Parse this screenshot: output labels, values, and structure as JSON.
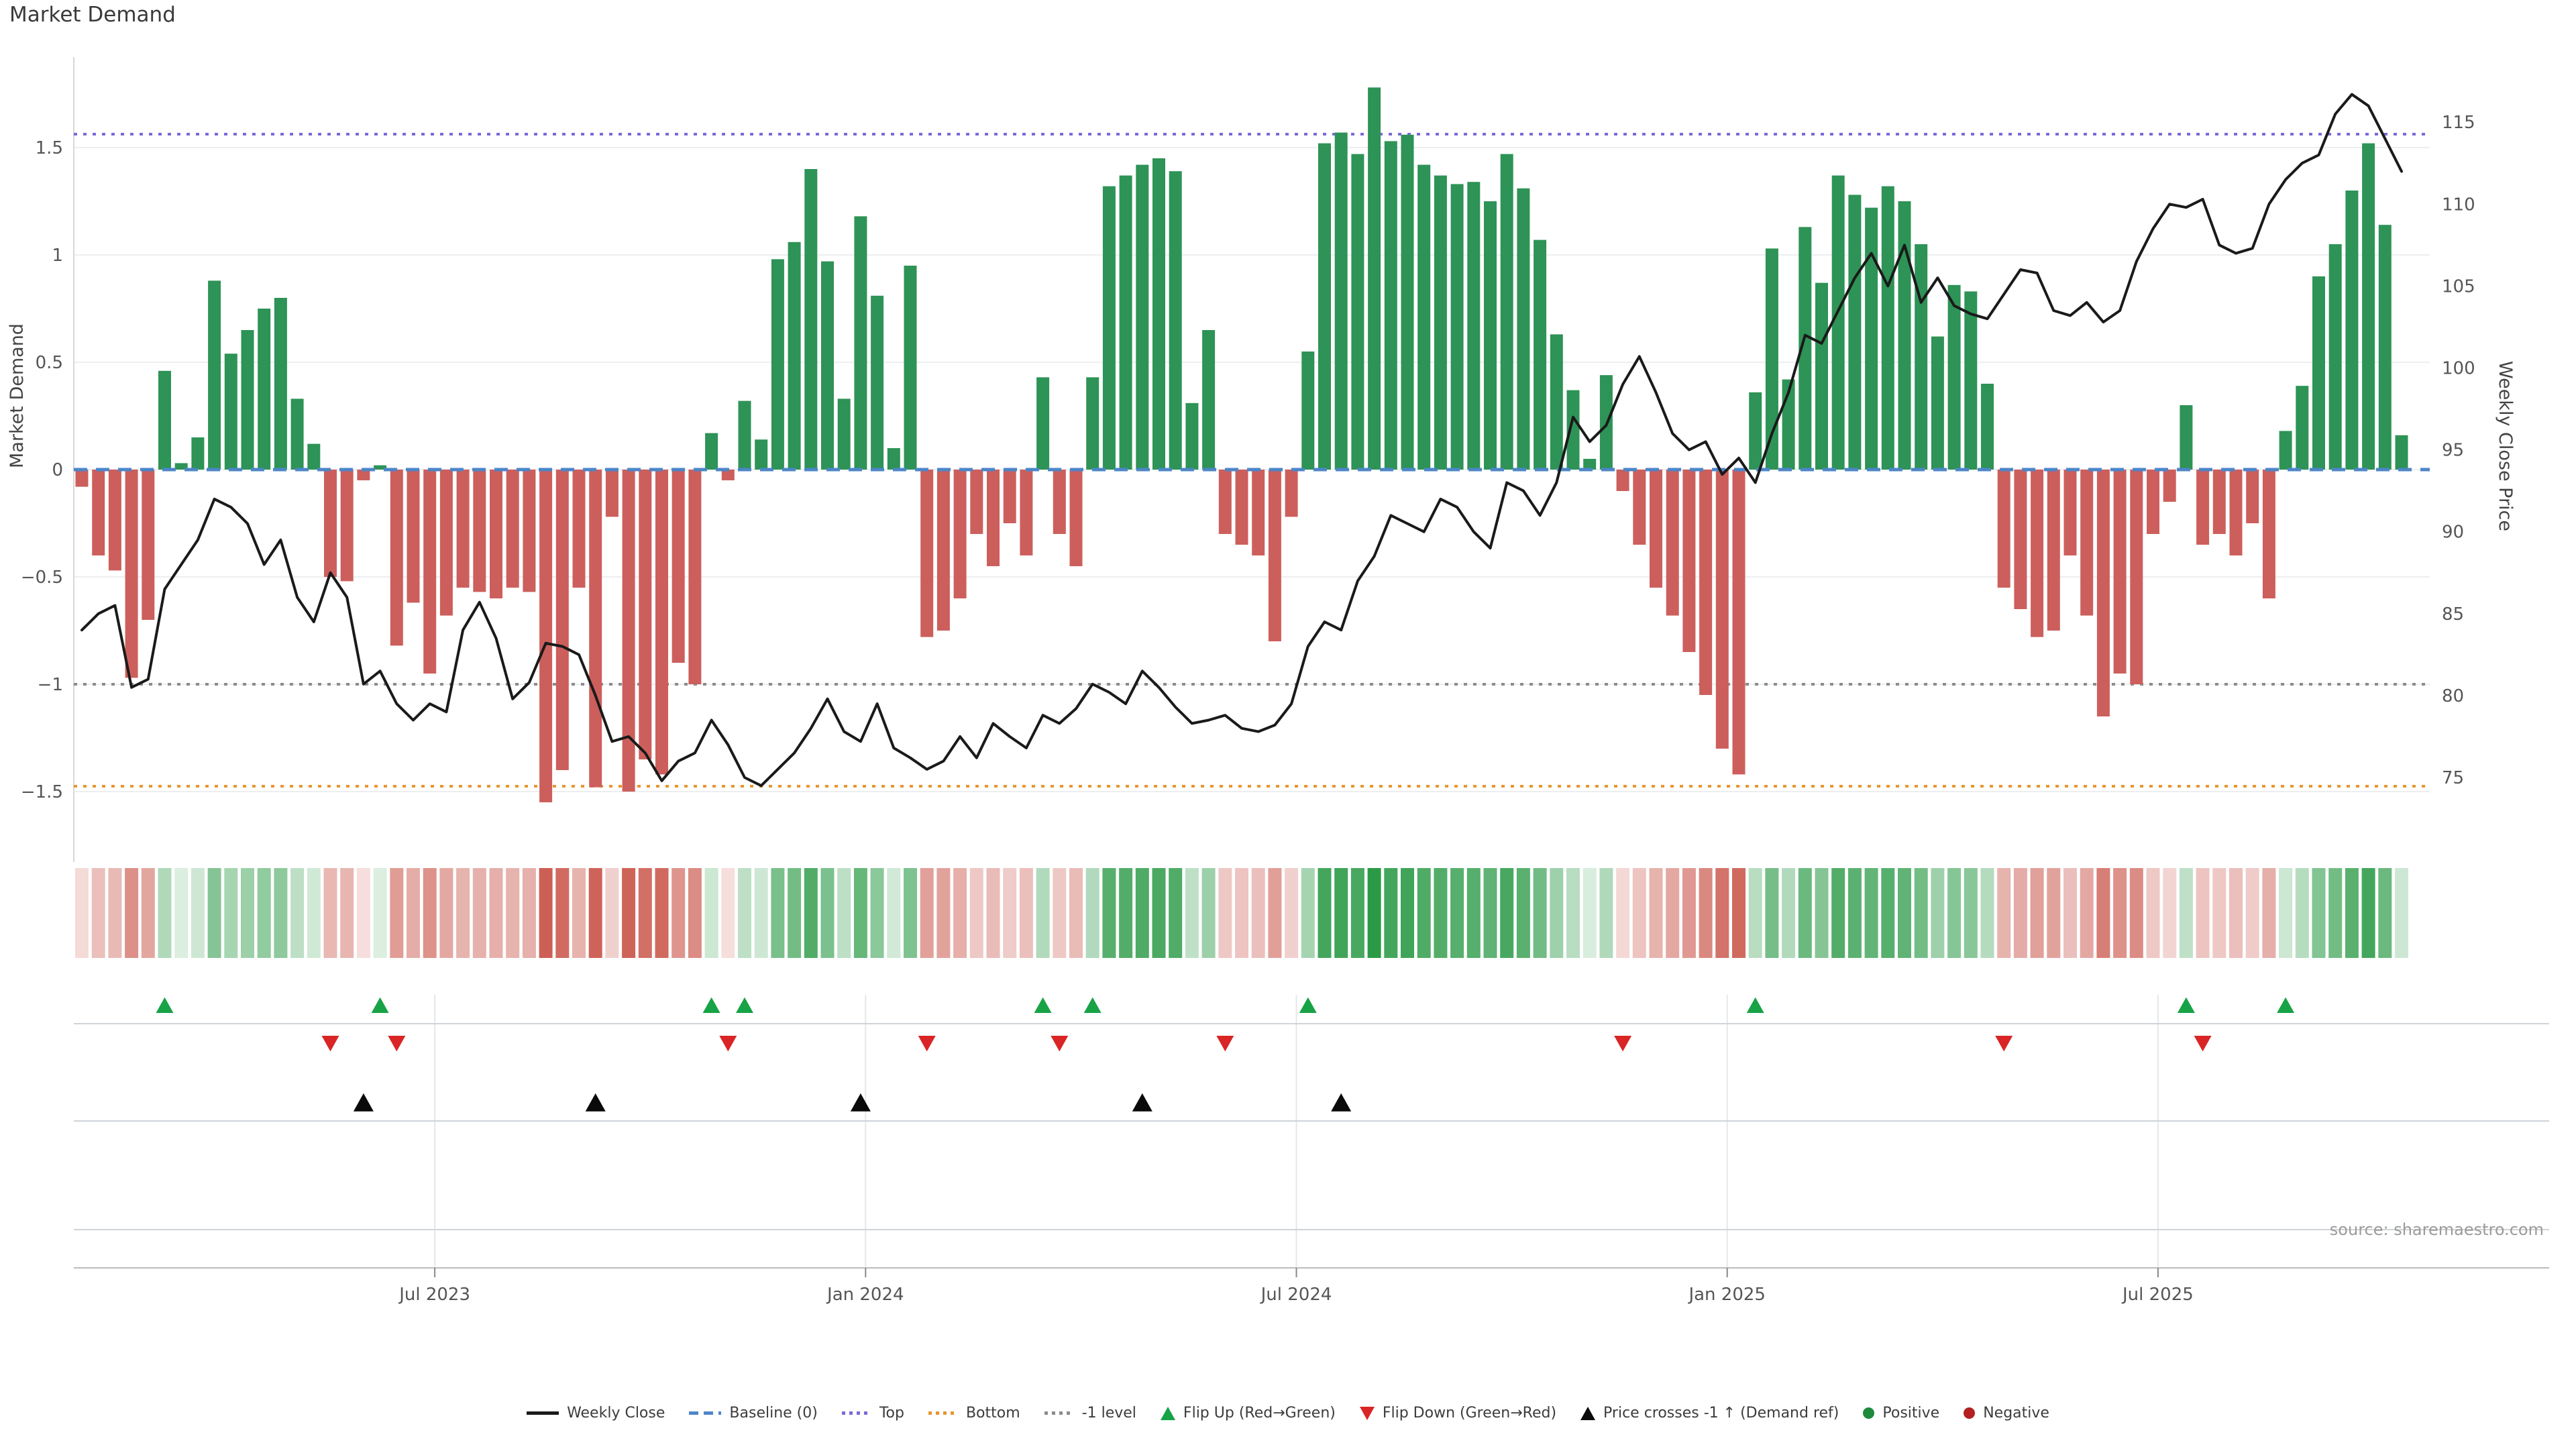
{
  "title": "Market Demand",
  "source_note": "source: sharemaestro.com",
  "axes": {
    "left": {
      "label": "Market Demand",
      "ticks": [
        {
          "value": 1.5,
          "label": "1.5"
        },
        {
          "value": 1,
          "label": "1"
        },
        {
          "value": 0.5,
          "label": "0.5"
        },
        {
          "value": 0,
          "label": "0"
        },
        {
          "value": -0.5,
          "label": "−0.5"
        },
        {
          "value": -1,
          "label": "−1"
        },
        {
          "value": -1.5,
          "label": "−1.5"
        }
      ]
    },
    "right": {
      "label": "Weekly Close Price",
      "ticks": [
        {
          "value": 115,
          "label": "115"
        },
        {
          "value": 110,
          "label": "110"
        },
        {
          "value": 105,
          "label": "105"
        },
        {
          "value": 100,
          "label": "100"
        },
        {
          "value": 95,
          "label": "95"
        },
        {
          "value": 90,
          "label": "90"
        },
        {
          "value": 85,
          "label": "85"
        },
        {
          "value": 80,
          "label": "80"
        },
        {
          "value": 75,
          "label": "75"
        }
      ]
    },
    "x": {
      "ticks": [
        {
          "label": "Jul 2023",
          "week": 21.3
        },
        {
          "label": "Jan 2024",
          "week": 47.3
        },
        {
          "label": "Jul 2024",
          "week": 73.3
        },
        {
          "label": "Jan 2025",
          "week": 99.3
        },
        {
          "label": "Jul 2025",
          "week": 125.3
        }
      ]
    }
  },
  "reference_lines": {
    "baseline": {
      "label": "Baseline (0)",
      "value": 0,
      "color": "#4d86c8"
    },
    "top": {
      "label": "Top",
      "value": 1.5625,
      "color": "#7a6bd8"
    },
    "bottom": {
      "label": "Bottom",
      "value": -1.475,
      "color": "#e8962f"
    },
    "minus_one": {
      "label": "-1 level",
      "value": -1,
      "color": "#8c8c8c"
    }
  },
  "colors": {
    "positive": "#2e9356",
    "negative": "#cc5f5c",
    "price_line": "#1a1a1a",
    "flip_up": "#17a346",
    "flip_down": "#d92525",
    "price_cross": "#0a0a0a",
    "grid": "#eceef0",
    "spine": "#d8d8d8",
    "panel_line": "#cfd4d9",
    "axis_line": "#bcbcbc",
    "tick_text": "#555555",
    "heat_pos": "40,153,68",
    "heat_neg": "198,73,60"
  },
  "legend": {
    "items": [
      {
        "label": "Weekly Close",
        "swatch": "line",
        "color": "#1a1a1a"
      },
      {
        "label": "Baseline (0)",
        "swatch": "dashes",
        "color": "#4d86c8"
      },
      {
        "label": "Top",
        "swatch": "dots",
        "color": "#7a6bd8"
      },
      {
        "label": "Bottom",
        "swatch": "dots",
        "color": "#e8962f"
      },
      {
        "label": "-1 level",
        "swatch": "dots",
        "color": "#8c8c8c"
      },
      {
        "label": "Flip Up (Red→Green)",
        "swatch": "triangle-up",
        "color": "#17a346"
      },
      {
        "label": "Flip Down (Green→Red)",
        "swatch": "triangle-down",
        "color": "#d92525"
      },
      {
        "label": "Price crosses -1 ↑ (Demand ref)",
        "swatch": "triangle-up",
        "color": "#0a0a0a"
      },
      {
        "label": "Positive",
        "swatch": "circle",
        "color": "#1e8a3c"
      },
      {
        "label": "Negative",
        "swatch": "circle",
        "color": "#b42020"
      }
    ]
  },
  "chart_data": {
    "type": "combo",
    "x_unit": "week",
    "weeks": 141,
    "x_tick_labels": [
      "Jul 2023",
      "Jan 2024",
      "Jul 2024",
      "Jan 2025",
      "Jul 2025"
    ],
    "left_axis_label": "Market Demand",
    "right_axis_label": "Weekly Close Price",
    "left_axis_range": [
      -1.83,
      1.92
    ],
    "right_axis_range": [
      69.8,
      119.0
    ],
    "reference_levels": {
      "baseline": 0,
      "top": 1.5625,
      "bottom": -1.475,
      "minus_one": -1
    },
    "series": [
      {
        "name": "Market Demand",
        "type": "bar",
        "axis": "left",
        "values": [
          -0.08,
          -0.4,
          -0.47,
          -0.97,
          -0.7,
          0.46,
          0.03,
          0.15,
          0.88,
          0.54,
          0.65,
          0.75,
          0.8,
          0.33,
          0.12,
          -0.5,
          -0.52,
          -0.05,
          0.02,
          -0.82,
          -0.62,
          -0.95,
          -0.68,
          -0.55,
          -0.57,
          -0.6,
          -0.55,
          -0.57,
          -1.55,
          -1.4,
          -0.55,
          -1.48,
          -0.22,
          -1.5,
          -1.35,
          -1.42,
          -0.9,
          -1.0,
          0.17,
          -0.05,
          0.32,
          0.14,
          0.98,
          1.06,
          1.4,
          0.97,
          0.33,
          1.18,
          0.81,
          0.1,
          0.95,
          -0.78,
          -0.75,
          -0.6,
          -0.3,
          -0.45,
          -0.25,
          -0.4,
          0.43,
          -0.3,
          -0.45,
          0.43,
          1.32,
          1.37,
          1.42,
          1.45,
          1.39,
          0.31,
          0.65,
          -0.3,
          -0.35,
          -0.4,
          -0.8,
          -0.22,
          0.55,
          1.52,
          1.57,
          1.47,
          1.78,
          1.53,
          1.56,
          1.42,
          1.37,
          1.33,
          1.34,
          1.25,
          1.47,
          1.31,
          1.07,
          0.63,
          0.37,
          0.05,
          0.44,
          -0.1,
          -0.35,
          -0.55,
          -0.68,
          -0.85,
          -1.05,
          -1.3,
          -1.42,
          0.36,
          1.03,
          0.42,
          1.13,
          0.87,
          1.37,
          1.28,
          1.22,
          1.32,
          1.25,
          1.05,
          0.62,
          0.86,
          0.83,
          0.4,
          -0.55,
          -0.65,
          -0.78,
          -0.75,
          -0.4,
          -0.68,
          -1.15,
          -0.95,
          -1.0,
          -0.3,
          -0.15,
          0.3,
          -0.35,
          -0.3,
          -0.4,
          -0.25,
          -0.6,
          0.18,
          0.39,
          0.9,
          1.05,
          1.3,
          1.52,
          1.14,
          0.16
        ]
      },
      {
        "name": "Weekly Close",
        "type": "line",
        "axis": "right",
        "values": [
          84,
          85,
          85.5,
          80.5,
          81,
          86.5,
          88,
          89.5,
          92,
          91.5,
          90.5,
          88,
          89.5,
          86,
          84.5,
          87.5,
          86,
          80.7,
          81.5,
          79.5,
          78.5,
          79.5,
          79,
          84,
          85.7,
          83.5,
          79.8,
          80.8,
          83.2,
          83,
          82.5,
          80,
          77.2,
          77.5,
          76.5,
          74.8,
          76,
          76.5,
          78.5,
          77,
          75,
          74.5,
          75.5,
          76.5,
          78,
          79.8,
          77.8,
          77.2,
          79.5,
          76.8,
          76.2,
          75.5,
          76,
          77.5,
          76.2,
          78.3,
          77.5,
          76.8,
          78.8,
          78.3,
          79.2,
          80.7,
          80.2,
          79.5,
          81.5,
          80.5,
          79.3,
          78.3,
          78.5,
          78.8,
          78,
          77.8,
          78.2,
          79.5,
          83,
          84.5,
          84,
          87,
          88.5,
          91,
          90.5,
          90,
          92,
          91.5,
          90,
          89,
          93,
          92.5,
          91,
          93,
          97,
          95.5,
          96.5,
          99,
          100.7,
          98.5,
          96,
          95,
          95.5,
          93.5,
          94.5,
          93,
          96,
          98.5,
          102,
          101.5,
          103.5,
          105.5,
          107,
          105,
          107.5,
          104,
          105.5,
          103.8,
          103.3,
          103,
          104.5,
          106,
          105.8,
          103.5,
          103.2,
          104,
          102.8,
          103.5,
          106.5,
          108.5,
          110,
          109.8,
          110.3,
          107.5,
          107,
          107.3,
          110,
          111.5,
          112.5,
          113,
          115.5,
          116.7,
          116,
          114,
          112
        ]
      }
    ],
    "heatmap": {
      "source": "Market Demand sign and intensity",
      "positive_label": "Positive",
      "negative_label": "Negative"
    },
    "markers": {
      "flip_up_weeks": [
        5,
        18,
        38,
        40,
        58,
        61,
        74,
        101,
        127,
        133
      ],
      "flip_down_weeks": [
        15,
        19,
        39,
        51,
        59,
        69,
        93,
        116,
        128
      ],
      "price_cross_weeks": [
        17,
        31,
        47,
        64,
        76
      ]
    }
  }
}
